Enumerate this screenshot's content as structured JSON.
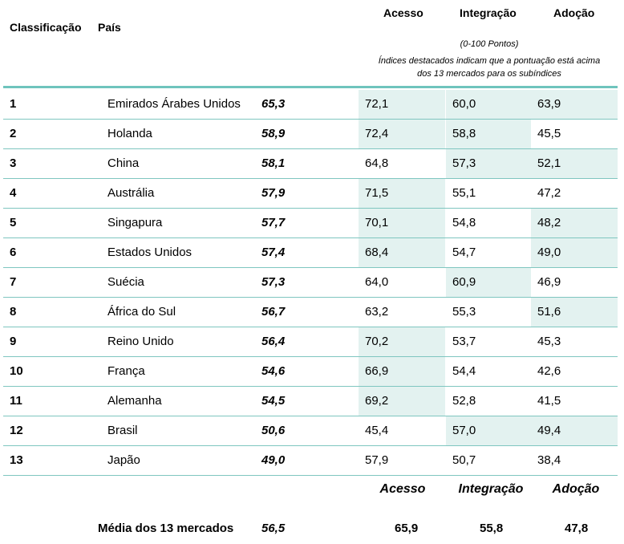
{
  "header": {
    "rank_label": "Classificação",
    "country_label": "País",
    "col_access": "Acesso",
    "col_integration": "Integração",
    "col_adoption": "Adoção",
    "points_note": "(0-100 Pontos)",
    "highlight_note_line1": "Índices destacados indicam que a pontuação está acima",
    "highlight_note_line2": "dos 13 mercados para os subíndices"
  },
  "colors": {
    "accent": "#6fc4bd",
    "highlight": "#e3f2f0",
    "grid": "#7fc6c0"
  },
  "rows": [
    {
      "rank": "1",
      "country": "Emirados Árabes Unidos",
      "score": "65,3",
      "access": "72,1",
      "integration": "60,0",
      "adoption": "63,9",
      "hl_access": true,
      "hl_integration": true,
      "hl_adoption": true
    },
    {
      "rank": "2",
      "country": "Holanda",
      "score": "58,9",
      "access": "72,4",
      "integration": "58,8",
      "adoption": "45,5",
      "hl_access": true,
      "hl_integration": true,
      "hl_adoption": false
    },
    {
      "rank": "3",
      "country": "China",
      "score": "58,1",
      "access": "64,8",
      "integration": "57,3",
      "adoption": "52,1",
      "hl_access": false,
      "hl_integration": true,
      "hl_adoption": true
    },
    {
      "rank": "4",
      "country": "Austrália",
      "score": "57,9",
      "access": "71,5",
      "integration": "55,1",
      "adoption": "47,2",
      "hl_access": true,
      "hl_integration": false,
      "hl_adoption": false
    },
    {
      "rank": "5",
      "country": "Singapura",
      "score": "57,7",
      "access": "70,1",
      "integration": "54,8",
      "adoption": "48,2",
      "hl_access": true,
      "hl_integration": false,
      "hl_adoption": true
    },
    {
      "rank": "6",
      "country": "Estados Unidos",
      "score": "57,4",
      "access": "68,4",
      "integration": "54,7",
      "adoption": "49,0",
      "hl_access": true,
      "hl_integration": false,
      "hl_adoption": true
    },
    {
      "rank": "7",
      "country": "Suécia",
      "score": "57,3",
      "access": "64,0",
      "integration": "60,9",
      "adoption": "46,9",
      "hl_access": false,
      "hl_integration": true,
      "hl_adoption": false
    },
    {
      "rank": "8",
      "country": "África do Sul",
      "score": "56,7",
      "access": "63,2",
      "integration": "55,3",
      "adoption": "51,6",
      "hl_access": false,
      "hl_integration": false,
      "hl_adoption": true
    },
    {
      "rank": "9",
      "country": "Reino Unido",
      "score": "56,4",
      "access": "70,2",
      "integration": "53,7",
      "adoption": "45,3",
      "hl_access": true,
      "hl_integration": false,
      "hl_adoption": false
    },
    {
      "rank": "10",
      "country": "França",
      "score": "54,6",
      "access": "66,9",
      "integration": "54,4",
      "adoption": "42,6",
      "hl_access": true,
      "hl_integration": false,
      "hl_adoption": false
    },
    {
      "rank": "11",
      "country": "Alemanha",
      "score": "54,5",
      "access": "69,2",
      "integration": "52,8",
      "adoption": "41,5",
      "hl_access": true,
      "hl_integration": false,
      "hl_adoption": false
    },
    {
      "rank": "12",
      "country": "Brasil",
      "score": "50,6",
      "access": "45,4",
      "integration": "57,0",
      "adoption": "49,4",
      "hl_access": false,
      "hl_integration": true,
      "hl_adoption": true
    },
    {
      "rank": "13",
      "country": "Japão",
      "score": "49,0",
      "access": "57,9",
      "integration": "50,7",
      "adoption": "38,4",
      "hl_access": false,
      "hl_integration": false,
      "hl_adoption": false
    }
  ],
  "footer": {
    "label_access": "Acesso",
    "label_integration": "Integração",
    "label_adoption": "Adoção",
    "average_label": "Média dos 13 mercados",
    "average_score": "56,5",
    "average_access": "65,9",
    "average_integration": "55,8",
    "average_adoption": "47,8"
  }
}
